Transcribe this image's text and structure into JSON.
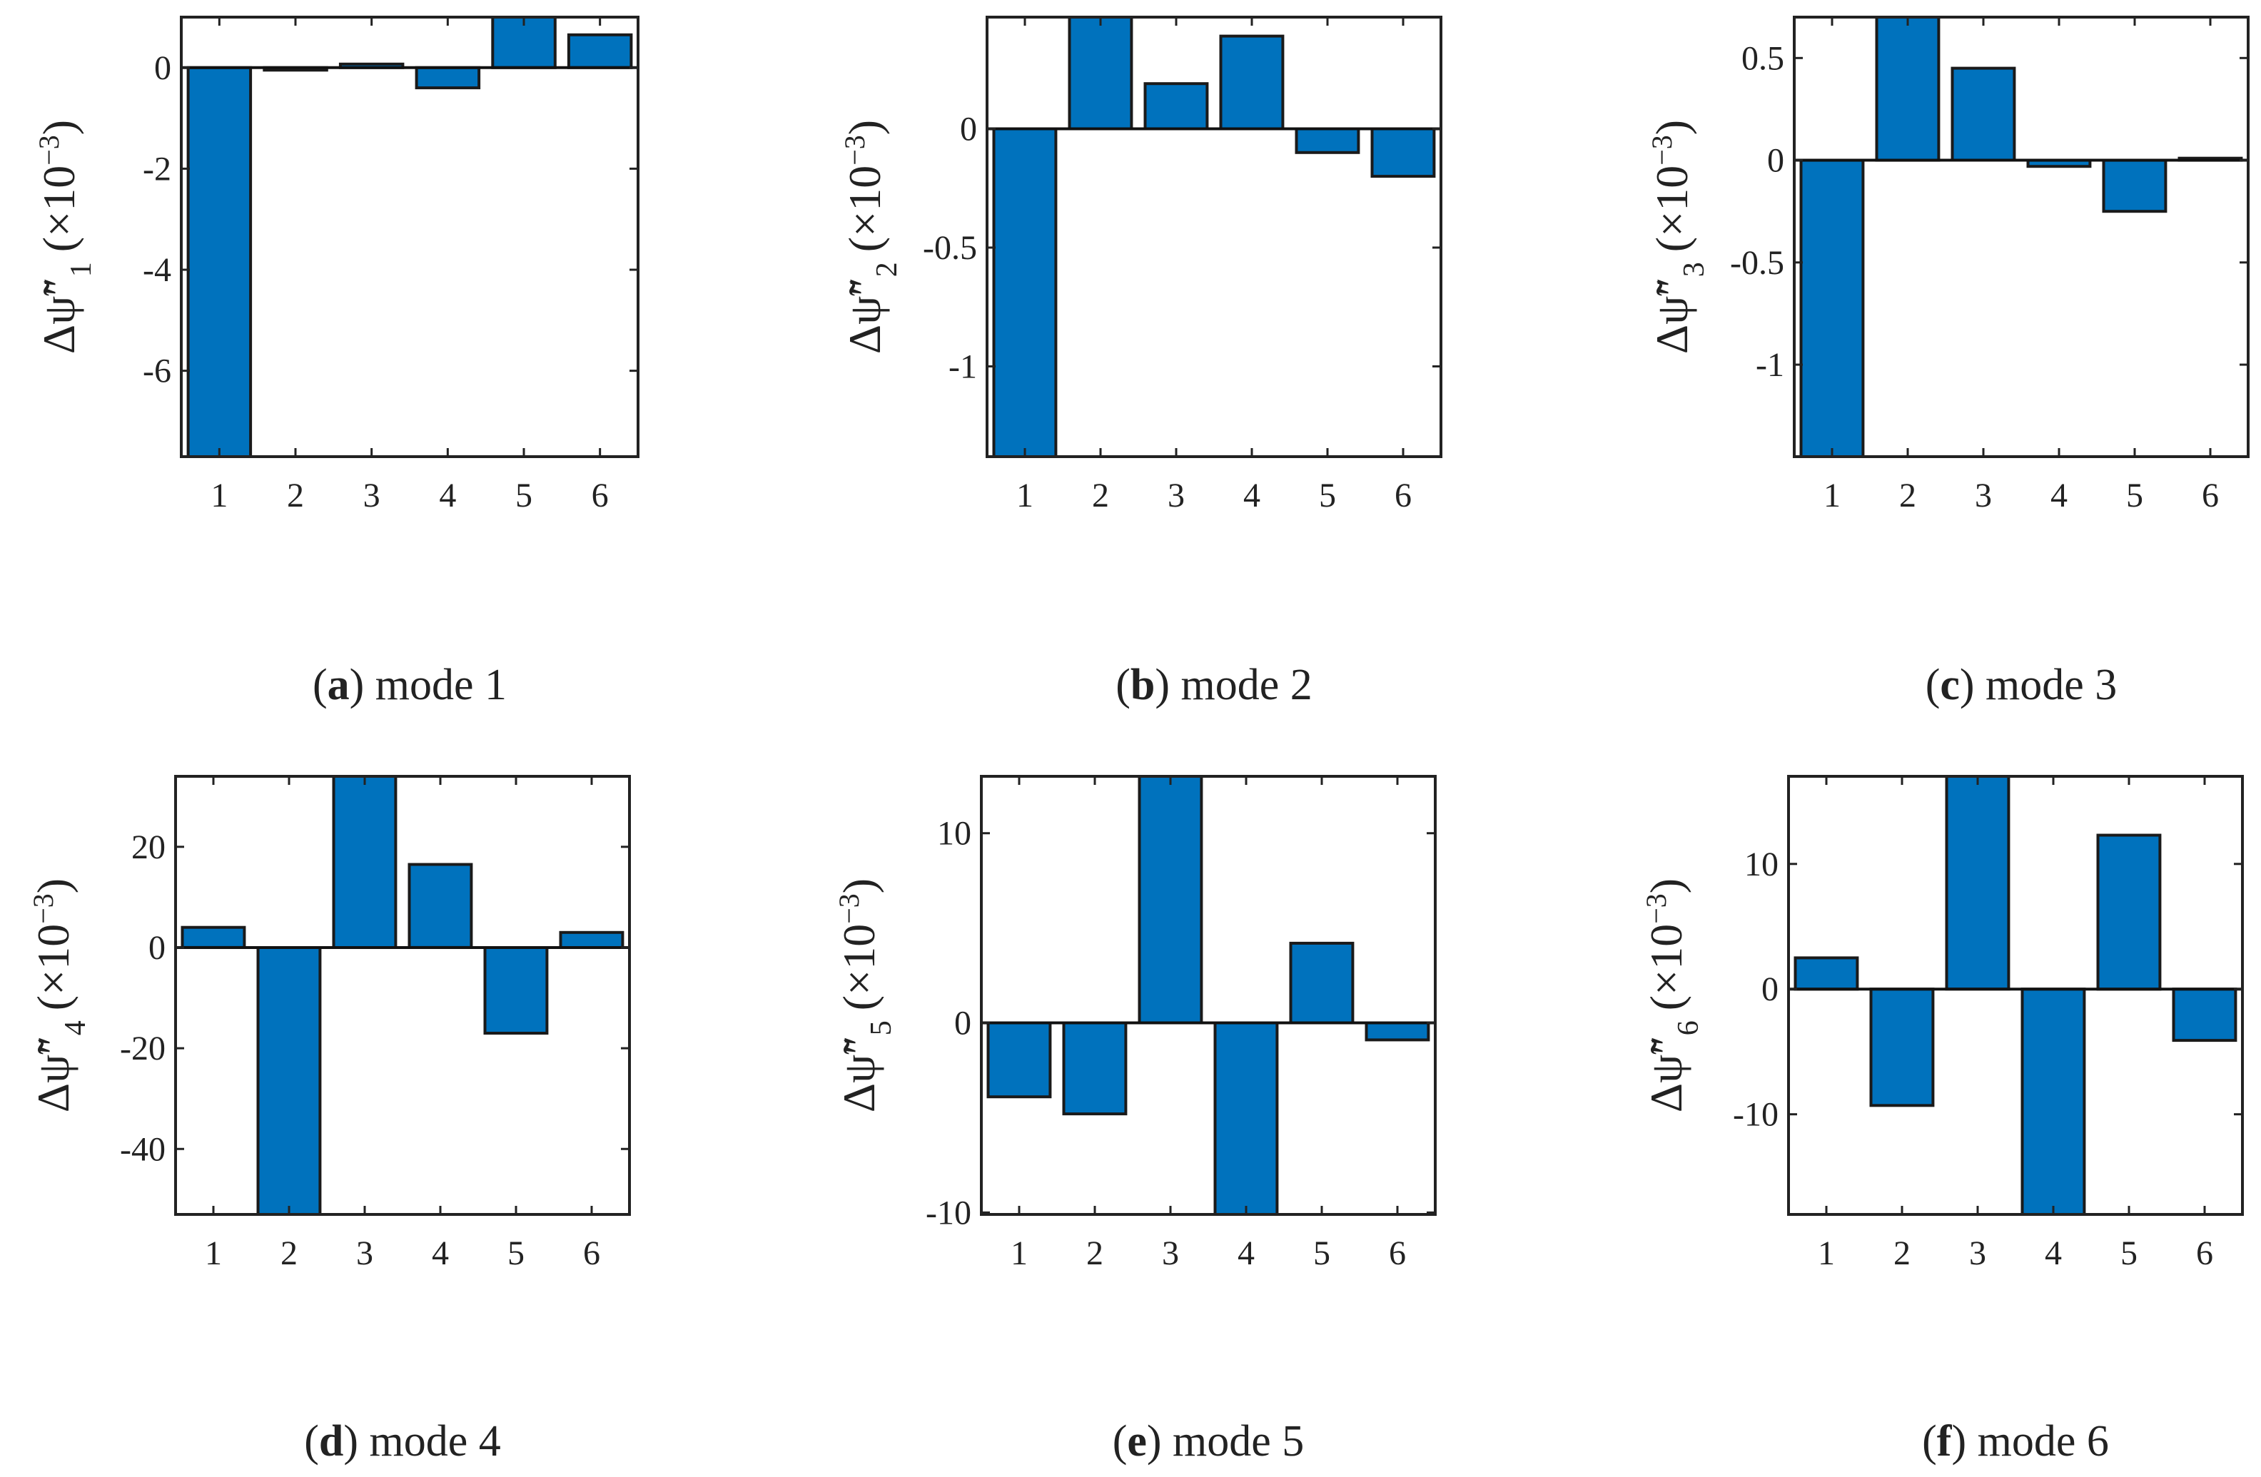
{
  "figure": {
    "bar_color": "#0072bd"
  },
  "chart_data": [
    {
      "type": "bar",
      "panel": "a",
      "caption_letter": "a",
      "caption_text": " mode 1",
      "categories": [
        "1",
        "2",
        "3",
        "4",
        "5",
        "6"
      ],
      "values": [
        -7.7,
        -0.05,
        0.07,
        -0.4,
        1.0,
        0.65
      ],
      "ylim": [
        -7.7,
        1.0
      ],
      "yticks": [
        0,
        -2,
        -4,
        -6
      ],
      "ytick_labels": [
        "0",
        "-2",
        "-4",
        "-6"
      ],
      "ylabel_base": "Δψ̃″",
      "ylabel_sub": "1",
      "ylabel_scale_prefix": "(×10",
      "ylabel_scale_exp": "−3",
      "ylabel_scale_suffix": ")"
    },
    {
      "type": "bar",
      "panel": "b",
      "caption_letter": "b",
      "caption_text": " mode 2",
      "categories": [
        "1",
        "2",
        "3",
        "4",
        "5",
        "6"
      ],
      "values": [
        -1.38,
        0.47,
        0.19,
        0.39,
        -0.1,
        -0.2
      ],
      "ylim": [
        -1.38,
        0.47
      ],
      "yticks": [
        0,
        -0.5,
        -1
      ],
      "ytick_labels": [
        "0",
        "-0.5",
        "-1"
      ],
      "ylabel_base": "Δψ̃″",
      "ylabel_sub": "2",
      "ylabel_scale_prefix": "(×10",
      "ylabel_scale_exp": "−3",
      "ylabel_scale_suffix": ")"
    },
    {
      "type": "bar",
      "panel": "c",
      "caption_letter": "c",
      "caption_text": " mode 3",
      "categories": [
        "1",
        "2",
        "3",
        "4",
        "5",
        "6"
      ],
      "values": [
        -1.45,
        0.7,
        0.45,
        -0.03,
        -0.25,
        0.01
      ],
      "ylim": [
        -1.45,
        0.7
      ],
      "yticks": [
        0.5,
        0,
        -0.5,
        -1
      ],
      "ytick_labels": [
        "0.5",
        "0",
        "-0.5",
        "-1"
      ],
      "ylabel_base": "Δψ̃″",
      "ylabel_sub": "3",
      "ylabel_scale_prefix": "(×10",
      "ylabel_scale_exp": "−3",
      "ylabel_scale_suffix": ")"
    },
    {
      "type": "bar",
      "panel": "d",
      "caption_letter": "d",
      "caption_text": " mode 4",
      "categories": [
        "1",
        "2",
        "3",
        "4",
        "5",
        "6"
      ],
      "values": [
        4,
        -53,
        34,
        16.5,
        -17,
        3
      ],
      "ylim": [
        -53,
        34
      ],
      "yticks": [
        20,
        0,
        -20,
        -40
      ],
      "ytick_labels": [
        "20",
        "0",
        "-20",
        "-40"
      ],
      "ylabel_base": "Δψ̃″",
      "ylabel_sub": "4",
      "ylabel_scale_prefix": "(×10",
      "ylabel_scale_exp": "−3",
      "ylabel_scale_suffix": ")"
    },
    {
      "type": "bar",
      "panel": "e",
      "caption_letter": "e",
      "caption_text": " mode 5",
      "categories": [
        "1",
        "2",
        "3",
        "4",
        "5",
        "6"
      ],
      "values": [
        -3.9,
        -4.8,
        13,
        -10.1,
        4.2,
        -0.9
      ],
      "ylim": [
        -10.1,
        13
      ],
      "yticks": [
        10,
        0,
        -10
      ],
      "ytick_labels": [
        "10",
        "0",
        "-10"
      ],
      "ylabel_base": "Δψ̃″",
      "ylabel_sub": "5",
      "ylabel_scale_prefix": "(×10",
      "ylabel_scale_exp": "−3",
      "ylabel_scale_suffix": ")"
    },
    {
      "type": "bar",
      "panel": "f",
      "caption_letter": "f",
      "caption_text": " mode 6",
      "categories": [
        "1",
        "2",
        "3",
        "4",
        "5",
        "6"
      ],
      "values": [
        2.5,
        -9.3,
        17,
        -18,
        12.3,
        -4.1
      ],
      "ylim": [
        -18,
        17
      ],
      "yticks": [
        10,
        0,
        -10
      ],
      "ytick_labels": [
        "10",
        "0",
        "-10"
      ],
      "ylabel_base": "Δψ̃″",
      "ylabel_sub": "6",
      "ylabel_scale_prefix": "(×10",
      "ylabel_scale_exp": "−3",
      "ylabel_scale_suffix": ")"
    }
  ]
}
